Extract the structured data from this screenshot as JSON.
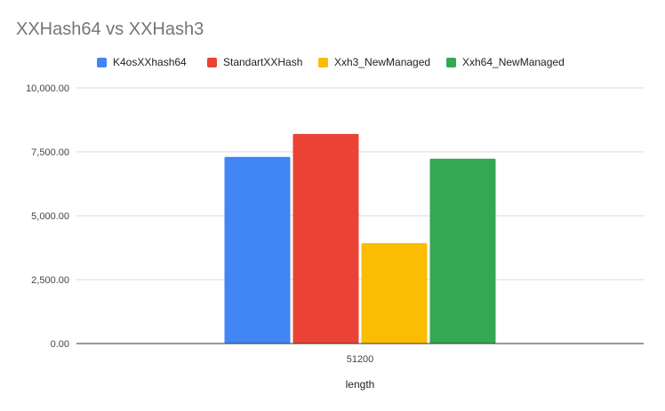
{
  "chart_data": {
    "type": "bar",
    "title": "XXHash64 vs XXHash3",
    "xlabel": "length",
    "ylabel": "",
    "categories": [
      "51200"
    ],
    "series": [
      {
        "name": "K4osXXhash64",
        "values": [
          7300
        ],
        "color": "#4285F4"
      },
      {
        "name": "StandartXXHash",
        "values": [
          8200
        ],
        "color": "#EA4335"
      },
      {
        "name": "Xxh3_NewManaged",
        "values": [
          3930
        ],
        "color": "#FBBC04"
      },
      {
        "name": "Xxh64_NewManaged",
        "values": [
          7230
        ],
        "color": "#34A853"
      }
    ],
    "ylim": [
      0,
      10000
    ],
    "yticks": [
      0,
      2500,
      5000,
      7500,
      10000
    ],
    "ytick_labels": [
      "0.00",
      "2,500.00",
      "5,000.00",
      "7,500.00",
      "10,000.00"
    ],
    "grid": true,
    "legend_position": "top"
  }
}
